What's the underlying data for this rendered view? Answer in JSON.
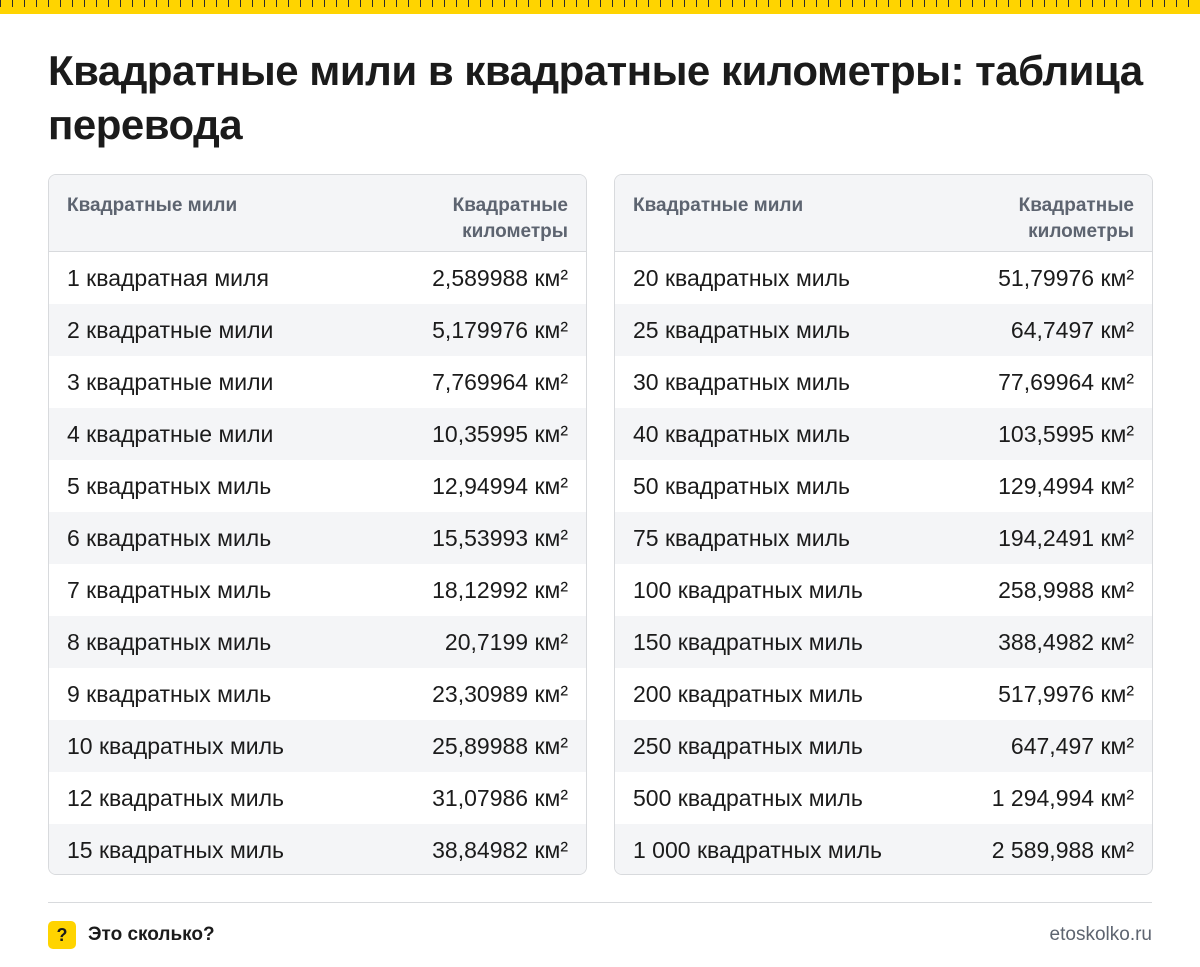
{
  "title": "Квадратные мили в квадратные километры: таблица перевода",
  "tables": [
    {
      "header": {
        "col1": "Квадратные мили",
        "col2": "Квадратные километры"
      },
      "rows": [
        {
          "miles": "1 квадратная миля",
          "km": "2,589988 км²"
        },
        {
          "miles": "2 квадратные мили",
          "km": "5,179976 км²"
        },
        {
          "miles": "3 квадратные мили",
          "km": "7,769964 км²"
        },
        {
          "miles": "4 квадратные мили",
          "km": "10,35995 км²"
        },
        {
          "miles": "5 квадратных миль",
          "km": "12,94994 км²"
        },
        {
          "miles": "6 квадратных миль",
          "km": "15,53993 км²"
        },
        {
          "miles": "7 квадратных миль",
          "km": "18,12992 км²"
        },
        {
          "miles": "8 квадратных миль",
          "km": "20,7199 км²"
        },
        {
          "miles": "9 квадратных миль",
          "km": "23,30989 км²"
        },
        {
          "miles": "10 квадратных миль",
          "km": "25,89988 км²"
        },
        {
          "miles": "12 квадратных миль",
          "km": "31,07986 км²"
        },
        {
          "miles": "15 квадратных миль",
          "km": "38,84982 км²"
        }
      ]
    },
    {
      "header": {
        "col1": "Квадратные мили",
        "col2": "Квадратные километры"
      },
      "rows": [
        {
          "miles": "20 квадратных миль",
          "km": "51,79976 км²"
        },
        {
          "miles": "25 квадратных миль",
          "km": "64,7497 км²"
        },
        {
          "miles": "30 квадратных миль",
          "km": "77,69964 км²"
        },
        {
          "miles": "40 квадратных миль",
          "km": "103,5995 км²"
        },
        {
          "miles": "50 квадратных миль",
          "km": "129,4994 км²"
        },
        {
          "miles": "75 квадратных миль",
          "km": "194,2491 км²"
        },
        {
          "miles": "100 квадратных миль",
          "km": "258,9988 км²"
        },
        {
          "miles": "150 квадратных миль",
          "km": "388,4982 км²"
        },
        {
          "miles": "200 квадратных миль",
          "km": "517,9976 км²"
        },
        {
          "miles": "250 квадратных миль",
          "km": "647,497 км²"
        },
        {
          "miles": "500 квадратных миль",
          "km": "1 294,994 км²"
        },
        {
          "miles": "1 000 квадратных миль",
          "km": "2 589,988 км²"
        }
      ]
    }
  ],
  "footer": {
    "logo_glyph": "?",
    "brand": "Это сколько?",
    "site": "etoskolko.ru"
  },
  "colors": {
    "accent": "#ffd400",
    "header_bg": "#f4f5f7",
    "header_text": "#5d6470",
    "border": "#d8dadd"
  }
}
